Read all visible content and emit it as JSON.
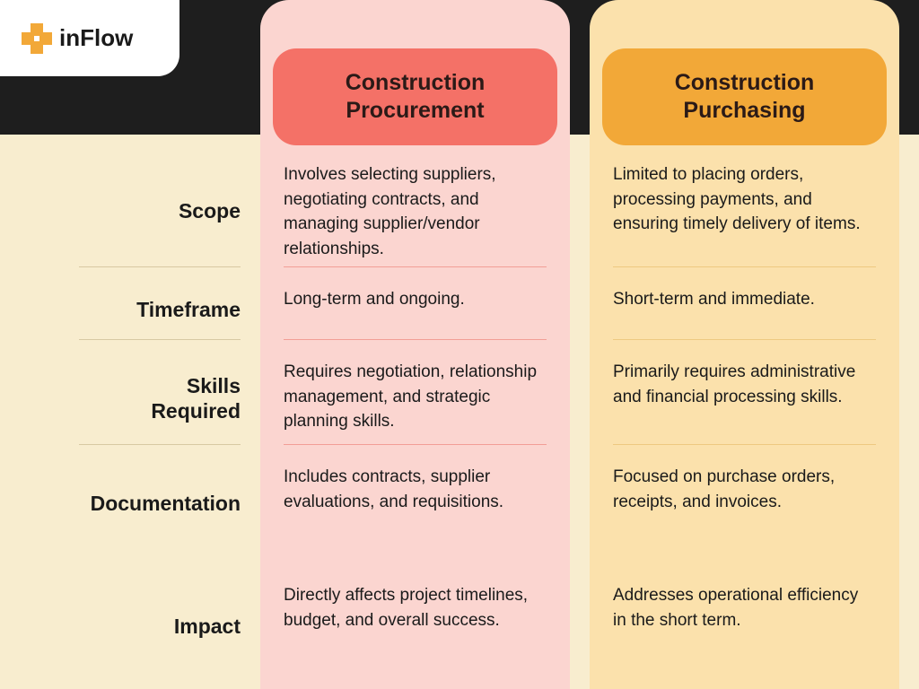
{
  "brand": {
    "name": "inFlow",
    "icon_color": "#f2a838"
  },
  "layout": {
    "header_bg": "#1e1e1e",
    "body_bg": "#f8edcf",
    "label_divider_color": "#d8c9a3"
  },
  "columns": [
    {
      "title_line1": "Construction",
      "title_line2": "Procurement",
      "header_bg": "#f47167",
      "header_text_color": "#2b1a17",
      "col_bg": "#fbd5d0",
      "divider_color": "#f29e96"
    },
    {
      "title_line1": "Construction",
      "title_line2": "Purchasing",
      "header_bg": "#f2a838",
      "header_text_color": "#2b1a17",
      "col_bg": "#fbe1ac",
      "divider_color": "#eec981"
    }
  ],
  "rows": [
    {
      "label": "Scope",
      "cells": [
        "Involves selecting suppliers, negotiating contracts, and managing supplier/vendor relationships.",
        "Limited to placing orders, processing payments, and ensuring timely delivery of items."
      ]
    },
    {
      "label": "Timeframe",
      "cells": [
        "Long-term and ongoing.",
        "Short-term and immediate."
      ]
    },
    {
      "label_line1": "Skills",
      "label_line2": "Required",
      "cells": [
        "Requires negotiation, relationship management, and strategic planning skills.",
        "Primarily requires administrative and financial processing skills."
      ]
    },
    {
      "label": "Documentation",
      "cells": [
        "Includes contracts, supplier evaluations, and requisitions.",
        "Focused on purchase orders, receipts, and invoices."
      ]
    },
    {
      "label": "Impact",
      "cells": [
        "Directly affects project timelines, budget, and overall success.",
        "Addresses operational efficiency in the short term."
      ]
    }
  ]
}
